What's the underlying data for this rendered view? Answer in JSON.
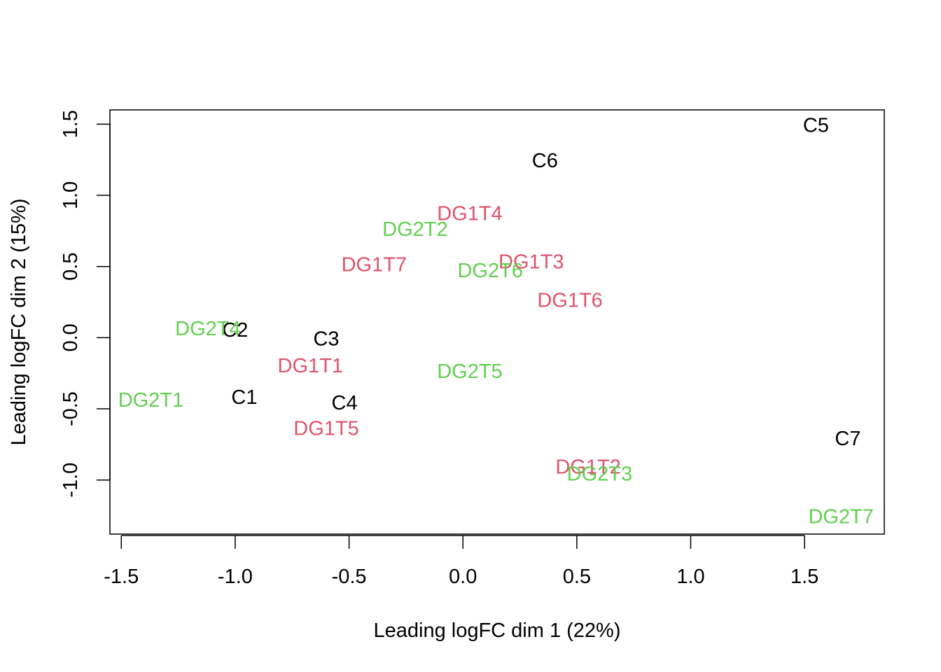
{
  "chart_data": {
    "type": "scatter",
    "title": "",
    "xlabel": "Leading logFC dim 1 (22%)",
    "ylabel": "Leading logFC dim 2 (15%)",
    "xlim": [
      -1.55,
      1.85
    ],
    "ylim": [
      -1.38,
      1.6
    ],
    "x_ticks": [
      -1.5,
      -1.0,
      -0.5,
      0.0,
      0.5,
      1.0,
      1.5
    ],
    "x_tick_labels": [
      "-1.5",
      "-1.0",
      "-0.5",
      "0.0",
      "0.5",
      "1.0",
      "1.5"
    ],
    "y_ticks": [
      -1.0,
      -0.5,
      0.0,
      0.5,
      1.0,
      1.5
    ],
    "y_tick_labels": [
      "-1.0",
      "-0.5",
      "0.0",
      "0.5",
      "1.0",
      "1.5"
    ],
    "grid": false,
    "legend": "none",
    "groups": [
      {
        "color": "#000000",
        "points": [
          {
            "label": "C1",
            "x": -0.96,
            "y": -0.42
          },
          {
            "label": "C2",
            "x": -1.0,
            "y": 0.05
          },
          {
            "label": "C3",
            "x": -0.6,
            "y": -0.01
          },
          {
            "label": "C4",
            "x": -0.52,
            "y": -0.46
          },
          {
            "label": "C5",
            "x": 1.55,
            "y": 1.49
          },
          {
            "label": "C6",
            "x": 0.36,
            "y": 1.24
          },
          {
            "label": "C7",
            "x": 1.69,
            "y": -0.71
          }
        ]
      },
      {
        "color": "#DF536B",
        "points": [
          {
            "label": "DG1T1",
            "x": -0.67,
            "y": -0.2
          },
          {
            "label": "DG1T2",
            "x": 0.55,
            "y": -0.91
          },
          {
            "label": "DG1T3",
            "x": 0.3,
            "y": 0.53
          },
          {
            "label": "DG1T4",
            "x": 0.03,
            "y": 0.87
          },
          {
            "label": "DG1T5",
            "x": -0.6,
            "y": -0.64
          },
          {
            "label": "DG1T6",
            "x": 0.47,
            "y": 0.26
          },
          {
            "label": "DG1T7",
            "x": -0.39,
            "y": 0.51
          }
        ]
      },
      {
        "color": "#61D04F",
        "points": [
          {
            "label": "DG2T1",
            "x": -1.37,
            "y": -0.44
          },
          {
            "label": "DG2T2",
            "x": -0.21,
            "y": 0.76
          },
          {
            "label": "DG2T3",
            "x": 0.6,
            "y": -0.96
          },
          {
            "label": "DG2T4",
            "x": -1.12,
            "y": 0.06
          },
          {
            "label": "DG2T5",
            "x": 0.03,
            "y": -0.24
          },
          {
            "label": "DG2T6",
            "x": 0.12,
            "y": 0.47
          },
          {
            "label": "DG2T7",
            "x": 1.66,
            "y": -1.26
          }
        ]
      }
    ]
  }
}
